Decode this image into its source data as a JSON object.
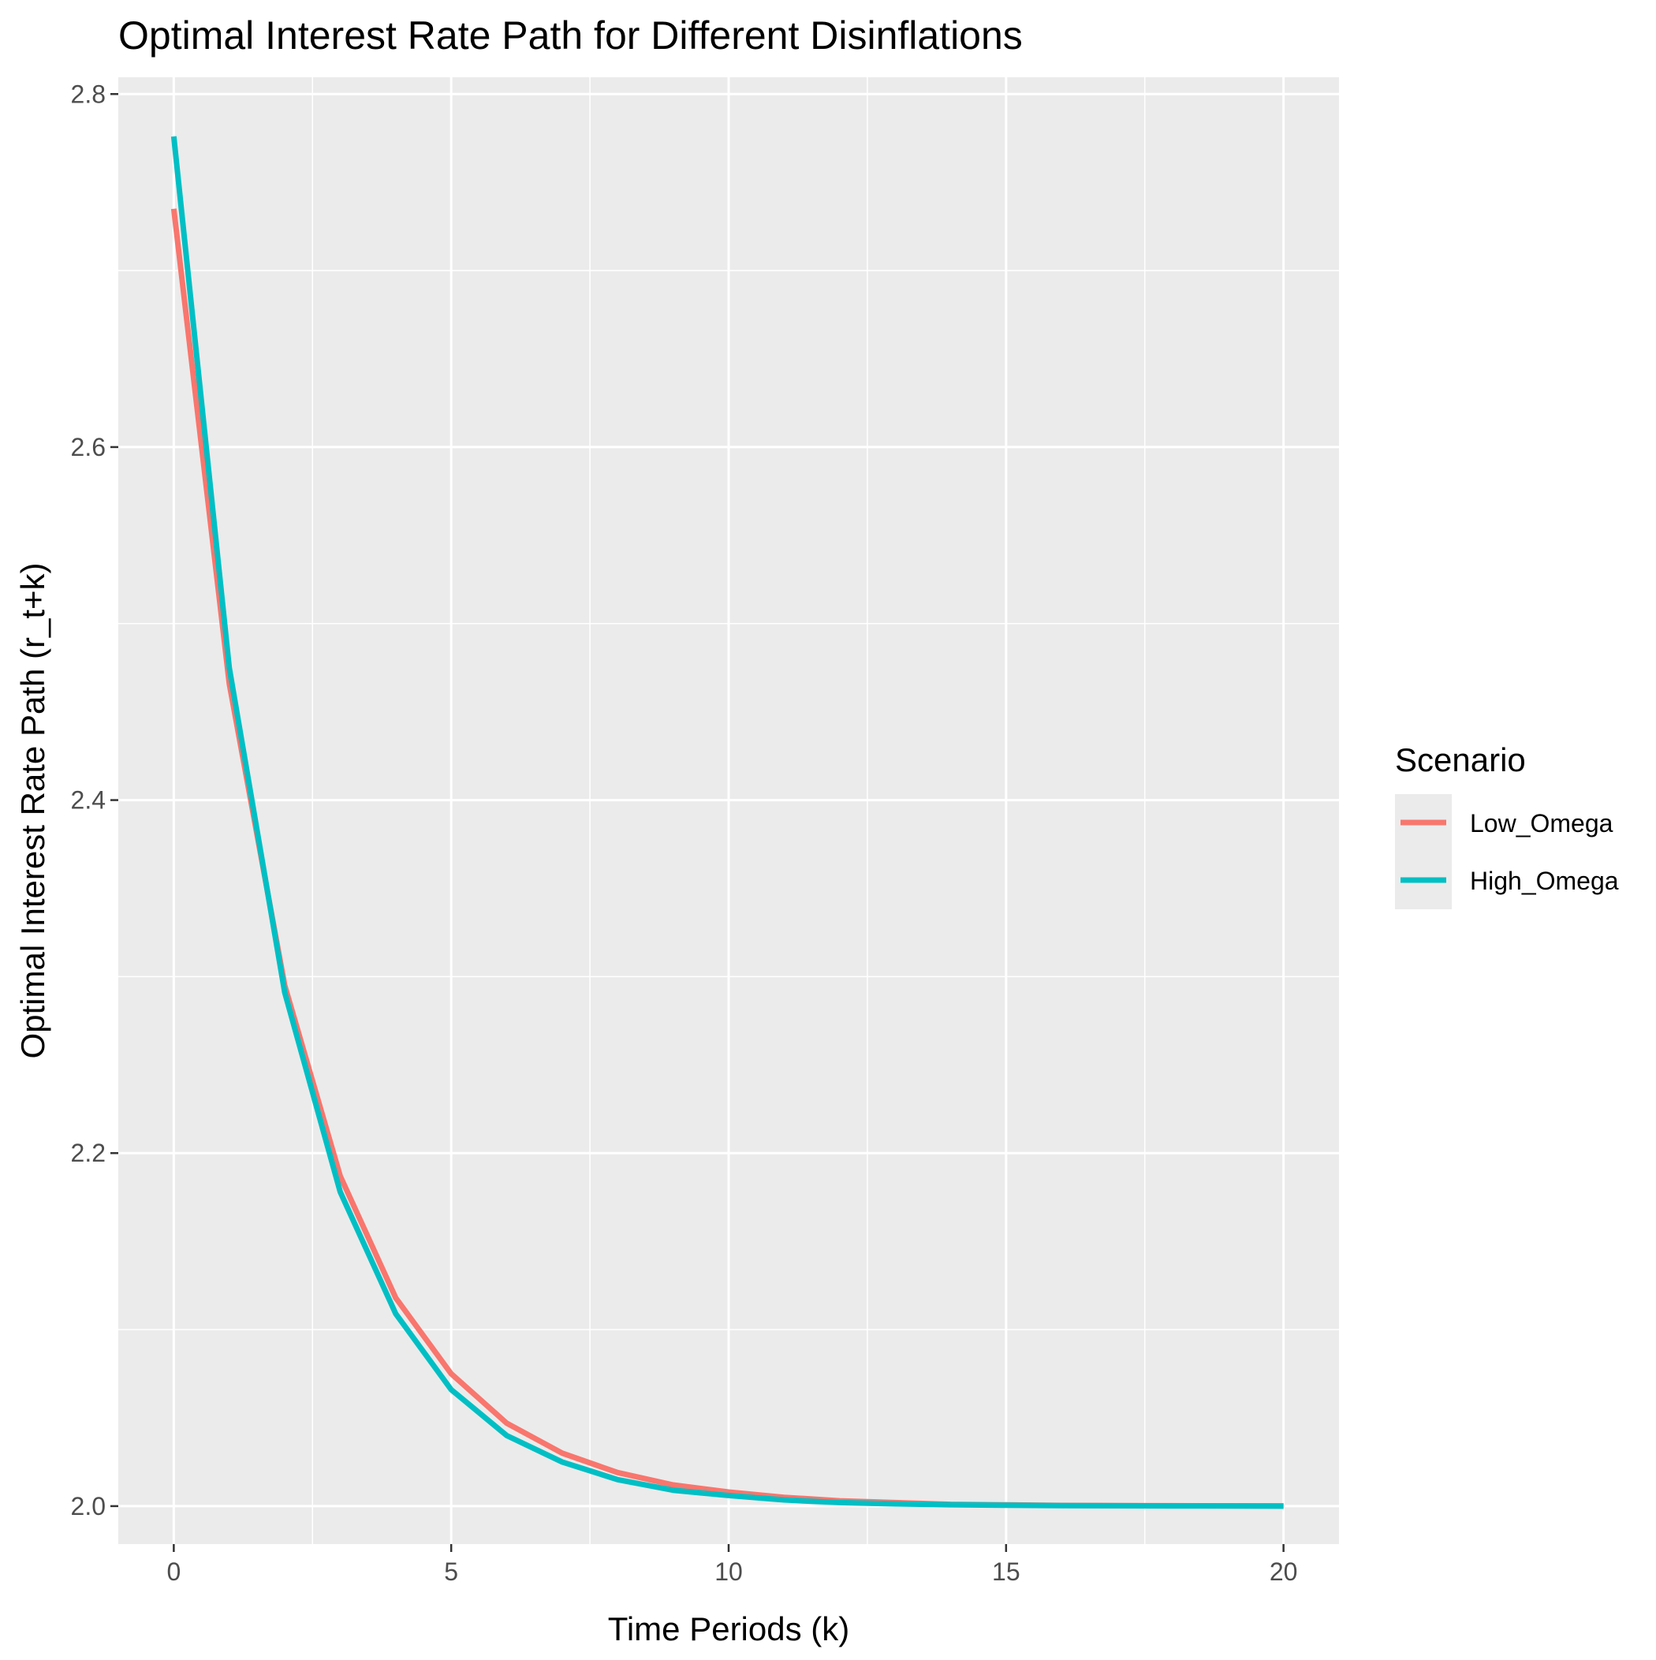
{
  "chart_data": {
    "type": "line",
    "title": "Optimal Interest Rate Path for Different Disinflations",
    "xlabel": "Time Periods (k)",
    "ylabel": "Optimal Interest Rate Path (r_t+k)",
    "xlim": [
      -1,
      21
    ],
    "ylim": [
      1.9785,
      2.8095
    ],
    "x_ticks": [
      0,
      5,
      10,
      15,
      20
    ],
    "y_ticks": [
      2.0,
      2.2,
      2.4,
      2.6,
      2.8
    ],
    "x_tick_labels": [
      "0",
      "5",
      "10",
      "15",
      "20"
    ],
    "y_tick_labels": [
      "2.0",
      "2.2",
      "2.4",
      "2.6",
      "2.8"
    ],
    "grid": true,
    "legend": {
      "title": "Scenario",
      "position": "right"
    },
    "x": [
      0,
      1,
      2,
      3,
      4,
      5,
      6,
      7,
      8,
      9,
      10,
      11,
      12,
      13,
      14,
      15,
      16,
      17,
      18,
      19,
      20
    ],
    "series": [
      {
        "name": "Low_Omega",
        "color": "#F8766D",
        "values": [
          2.735,
          2.466,
          2.295,
          2.187,
          2.118,
          2.075,
          2.047,
          2.03,
          2.019,
          2.012,
          2.008,
          2.005,
          2.003,
          2.002,
          2.001,
          2.0007,
          2.0004,
          2.0003,
          2.0002,
          2.0001,
          2.0001
        ]
      },
      {
        "name": "High_Omega",
        "color": "#00BFC4",
        "values": [
          2.776,
          2.475,
          2.291,
          2.178,
          2.109,
          2.066,
          2.04,
          2.025,
          2.015,
          2.009,
          2.006,
          2.0035,
          2.002,
          2.0013,
          2.0008,
          2.0005,
          2.0003,
          2.0002,
          2.0001,
          2.0001,
          2.0
        ]
      }
    ]
  }
}
